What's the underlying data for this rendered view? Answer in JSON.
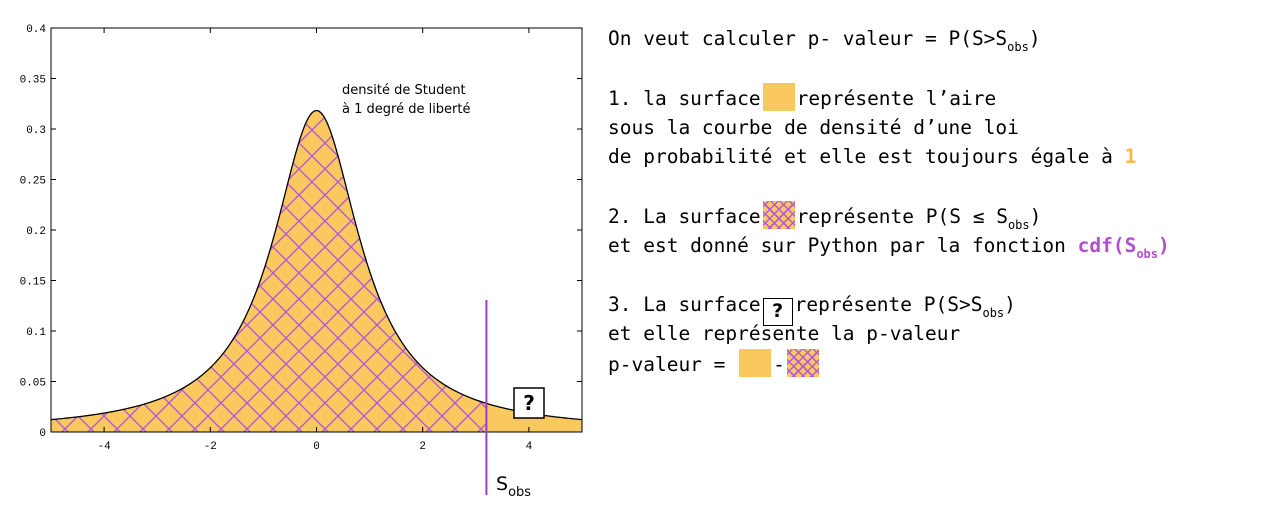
{
  "chart_data": {
    "type": "area",
    "distribution": "Student t",
    "degrees_of_freedom": 1,
    "xlim": [
      -5,
      5
    ],
    "ylim": [
      0,
      0.4
    ],
    "x_ticks": [
      -4,
      -2,
      0,
      2,
      4
    ],
    "x_tick_labels": [
      "-4",
      "-2",
      "0",
      "2",
      "4"
    ],
    "y_ticks": [
      0,
      0.05,
      0.1,
      0.15,
      0.2,
      0.25,
      0.3,
      0.35,
      0.4
    ],
    "y_tick_labels": [
      "0",
      "0.05",
      "0.1",
      "0.15",
      "0.2",
      "0.25",
      "0.3",
      "0.35",
      "0.4"
    ],
    "s_obs": 3.2,
    "s_obs_label": "S",
    "s_obs_sub": "obs",
    "annotation_line1": "densité de Student",
    "annotation_line2": "à 1 degré de liberté",
    "question_mark": "?",
    "colors": {
      "fill": "#f9c95f",
      "hatch": "#b659d6",
      "vline": "#9b3cc6"
    }
  },
  "text": {
    "l1a": "On veut calculer p- valeur = P(S>S",
    "l1s": "obs",
    "l1b": ")",
    "l2a": "1. la surface",
    "l2b": "représente l’aire",
    "l3": "sous la courbe de densité d’une loi",
    "l4a": "de probabilité et elle est toujours égale à",
    "l4b": "1",
    "l5a": "2. La surface",
    "l5b": "représente P(S ≤ S",
    "l5s": "obs",
    "l5c": ")",
    "l6a": "et est donné sur Python par la fonction",
    "l6b": "cdf(S",
    "l6s": "obs",
    "l6c": ")",
    "l7a": "3. La surface",
    "l7q": "?",
    "l7b": "représente P(S>S",
    "l7s": "obs",
    "l7c": ")",
    "l8": "et elle représente la p-valeur",
    "l9a": "p-valeur =",
    "l9b": "-"
  }
}
